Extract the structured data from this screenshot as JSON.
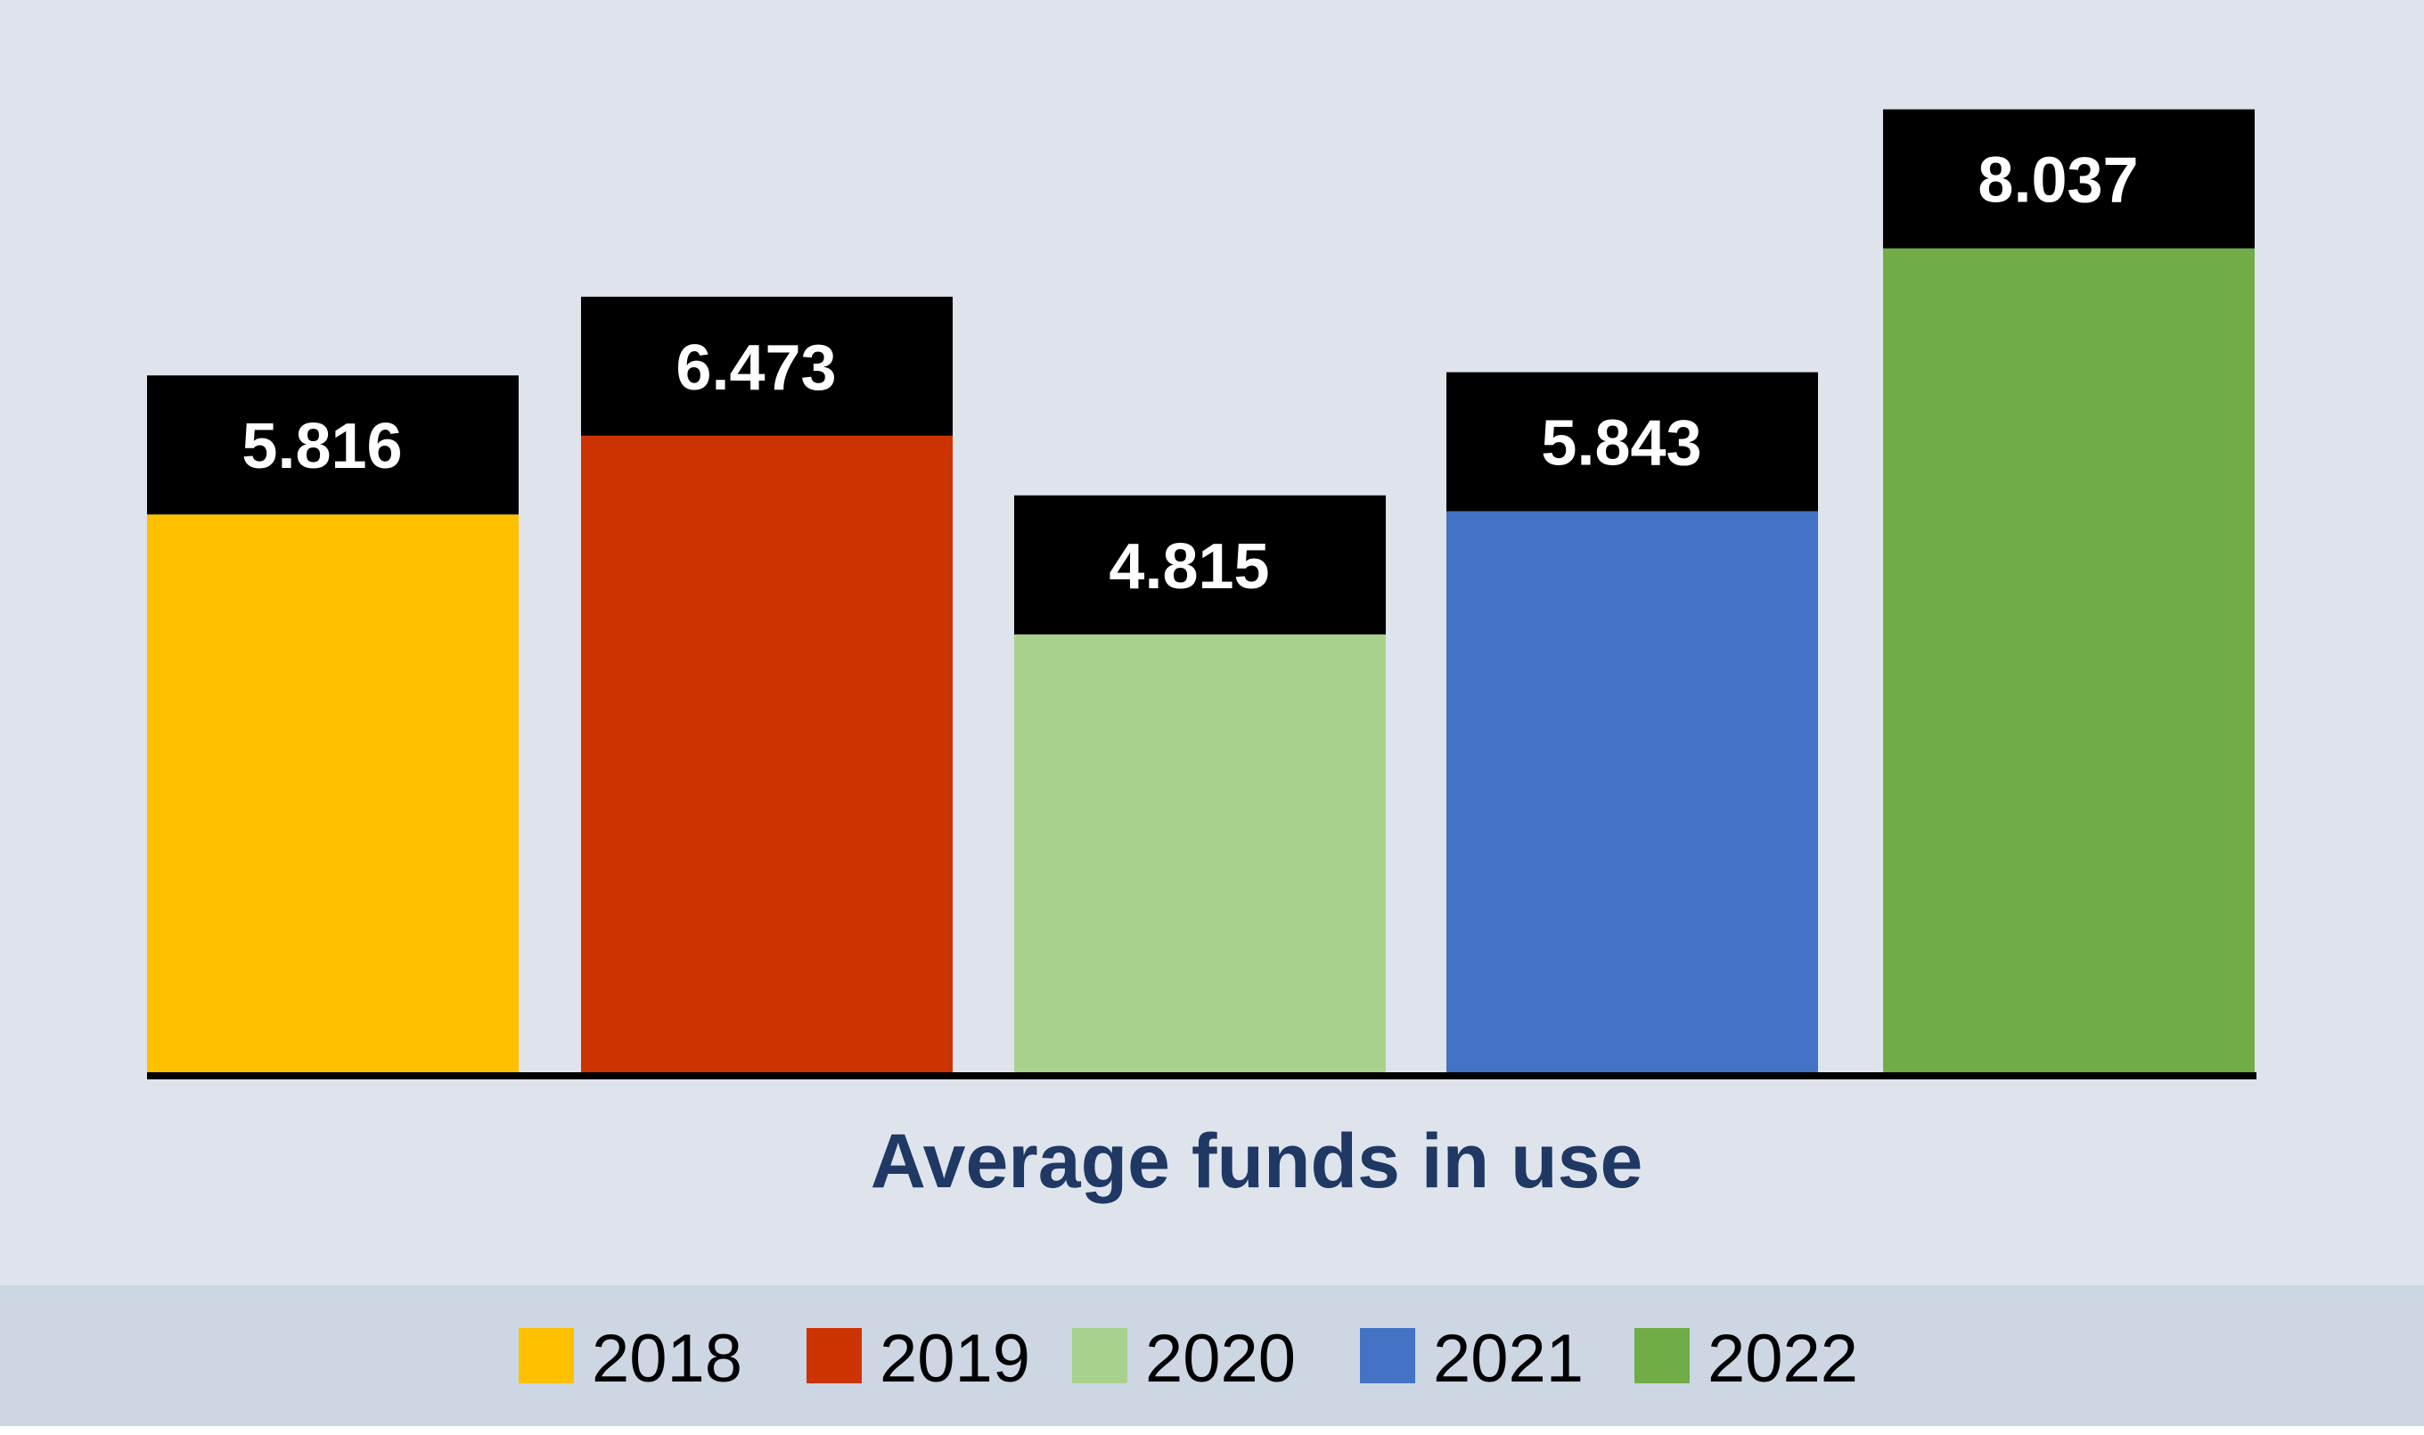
{
  "chart_data": {
    "type": "bar",
    "categories": [
      "2018",
      "2019",
      "2020",
      "2021",
      "2022"
    ],
    "values": [
      5.816,
      6.473,
      4.815,
      5.843,
      8.037
    ],
    "data_labels": [
      "5.816",
      "6.473",
      "4.815",
      "5.843",
      "8.037"
    ],
    "title": "",
    "xlabel": "Average funds in use",
    "ylabel": "",
    "ylim": [
      0,
      8.28
    ],
    "grid": false,
    "legend": {
      "placement": "bottom",
      "entries": [
        "2018",
        "2019",
        "2020",
        "2021",
        "2022"
      ]
    },
    "colors": [
      "#ffc000",
      "#cc3300",
      "#a9d18e",
      "#4472c4",
      "#70ad47"
    ],
    "label_box_color": "#000000",
    "background_color": "#dfe4ec",
    "legend_background_color": "#cdd6e3",
    "xlabel_color": "#1f3864"
  }
}
